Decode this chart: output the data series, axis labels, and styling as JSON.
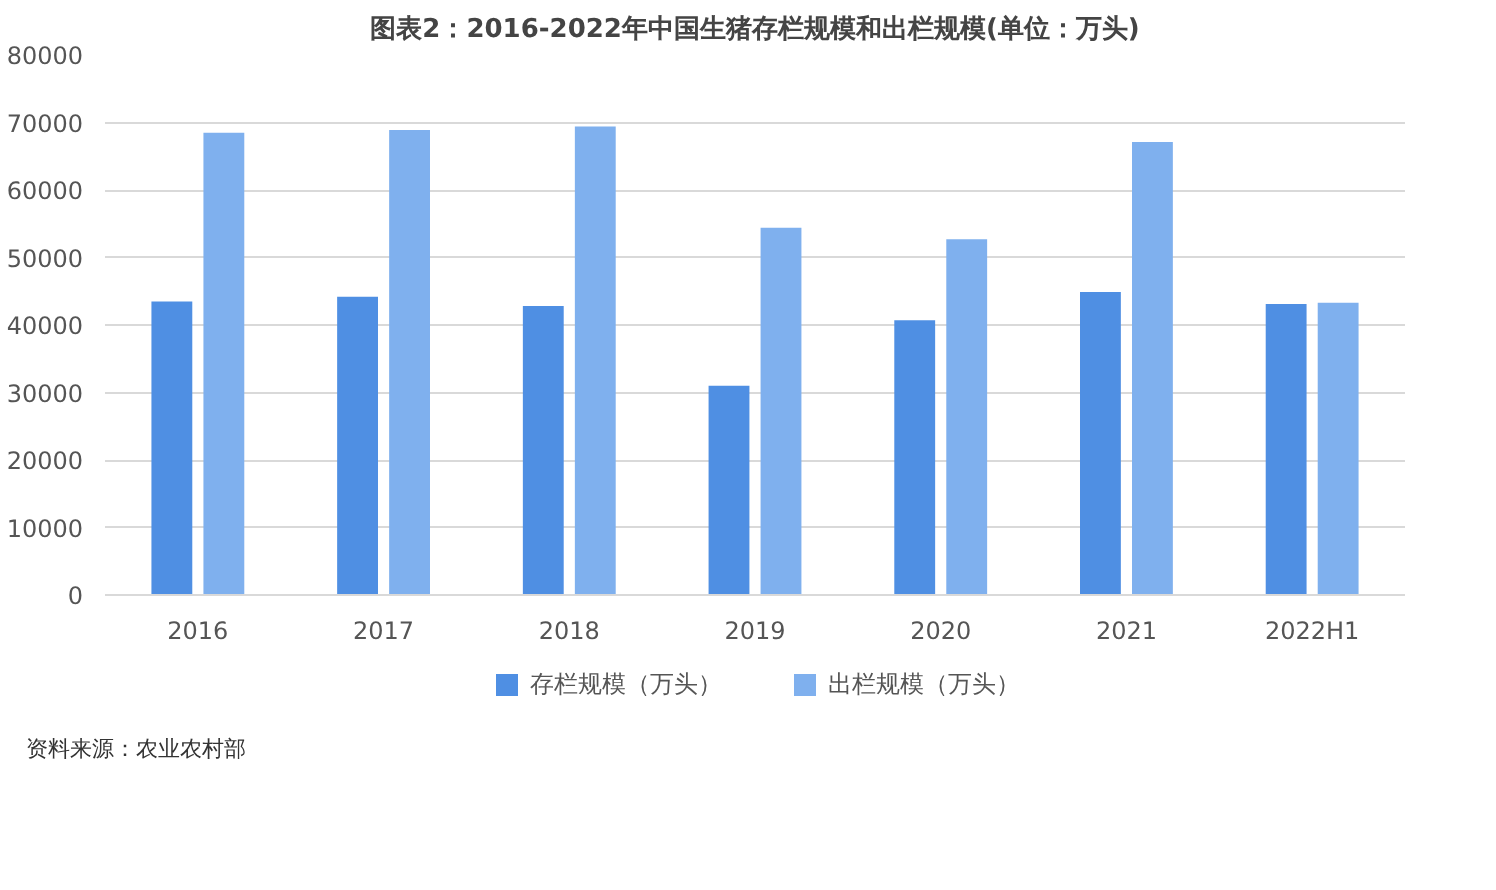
{
  "chart_data": {
    "type": "bar",
    "title": "图表2：2016-2022年中国生猪存栏规模和出栏规模(单位：万头)",
    "categories": [
      "2016",
      "2017",
      "2018",
      "2019",
      "2020",
      "2021",
      "2022H1"
    ],
    "series": [
      {
        "name": "存栏规模（万头）",
        "color": "#4f8fe3",
        "values": [
          43500,
          44200,
          42800,
          31000,
          40700,
          44900,
          43100
        ]
      },
      {
        "name": "出栏规模（万头）",
        "color": "#7fb0ee",
        "values": [
          68500,
          68900,
          69400,
          54400,
          52700,
          67100,
          43300
        ]
      }
    ],
    "ylim": [
      0,
      80000
    ],
    "yticks": [
      0,
      10000,
      20000,
      30000,
      40000,
      50000,
      60000,
      70000,
      80000
    ],
    "grid": "y",
    "legend": "bottom",
    "annotations": [
      "资料来源：农业农村部"
    ]
  }
}
